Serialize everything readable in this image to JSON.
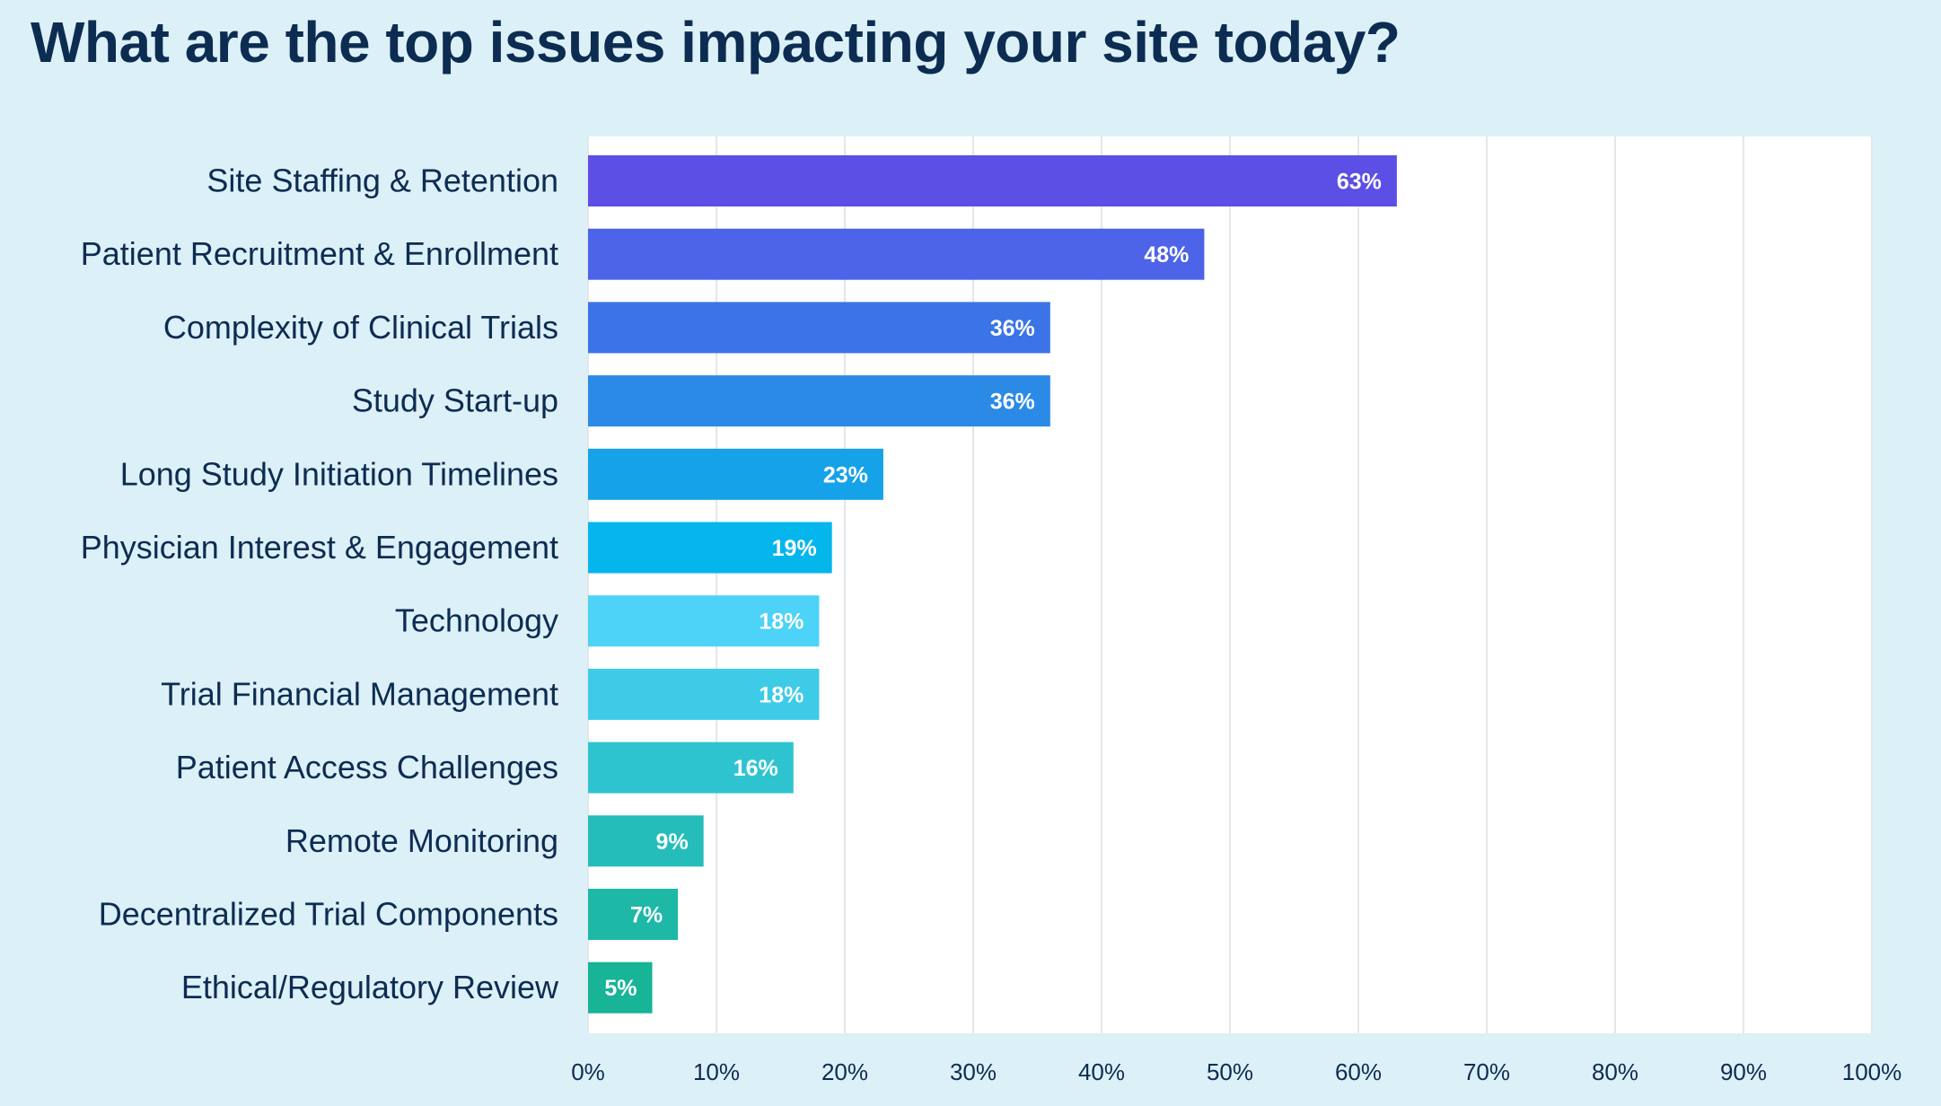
{
  "chart_data": {
    "type": "bar",
    "orientation": "horizontal",
    "title": "What are the top issues impacting your site today?",
    "categories": [
      "Site Staffing & Retention",
      "Patient Recruitment & Enrollment",
      "Complexity of Clinical Trials",
      "Study Start-up",
      "Long Study Initiation Timelines",
      "Physician Interest & Engagement",
      "Technology",
      "Trial Financial Management",
      "Patient Access Challenges",
      "Remote Monitoring",
      "Decentralized Trial Components",
      "Ethical/Regulatory Review"
    ],
    "values": [
      63,
      48,
      36,
      36,
      23,
      19,
      18,
      18,
      16,
      9,
      7,
      5
    ],
    "value_labels": [
      "63%",
      "48%",
      "36%",
      "36%",
      "23%",
      "19%",
      "18%",
      "18%",
      "16%",
      "9%",
      "7%",
      "5%"
    ],
    "bar_colors": [
      "#5b4fe5",
      "#4d63e8",
      "#3a74e6",
      "#2b8ae6",
      "#16a2e8",
      "#05b6ec",
      "#4dd2f8",
      "#3dcbe8",
      "#2ec4cf",
      "#24bdb9",
      "#1db8a6",
      "#17b497"
    ],
    "xlim": [
      0,
      100
    ],
    "xticks": [
      "0%",
      "10%",
      "20%",
      "30%",
      "40%",
      "50%",
      "60%",
      "70%",
      "80%",
      "90%",
      "100%"
    ],
    "xlabel": "",
    "ylabel": "",
    "grid": true,
    "legend": "none"
  }
}
